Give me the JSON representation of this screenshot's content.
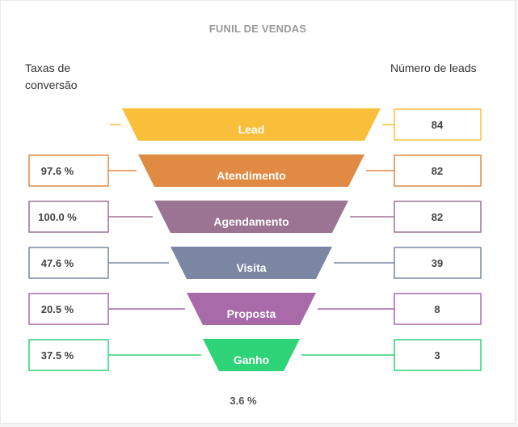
{
  "chart_data": {
    "type": "funnel",
    "title": "FUNIL DE VENDAS",
    "left_header": "Taxas de conversão",
    "right_header": "Número de leads",
    "stages": [
      {
        "name": "Lead",
        "value": 84,
        "rate": null,
        "color": "#f9bf3b"
      },
      {
        "name": "Atendimento",
        "value": 82,
        "rate": "97.6 %",
        "color": "#e08a43"
      },
      {
        "name": "Agendamento",
        "value": 82,
        "rate": "100.0 %",
        "color": "#9b7393"
      },
      {
        "name": "Visita",
        "value": 39,
        "rate": "47.6 %",
        "color": "#7b86a3"
      },
      {
        "name": "Proposta",
        "value": 8,
        "rate": "20.5 %",
        "color": "#a96aaa"
      },
      {
        "name": "Ganho",
        "value": 3,
        "rate": "37.5 %",
        "color": "#2ed477"
      }
    ],
    "overall_rate": "3.6 %"
  }
}
